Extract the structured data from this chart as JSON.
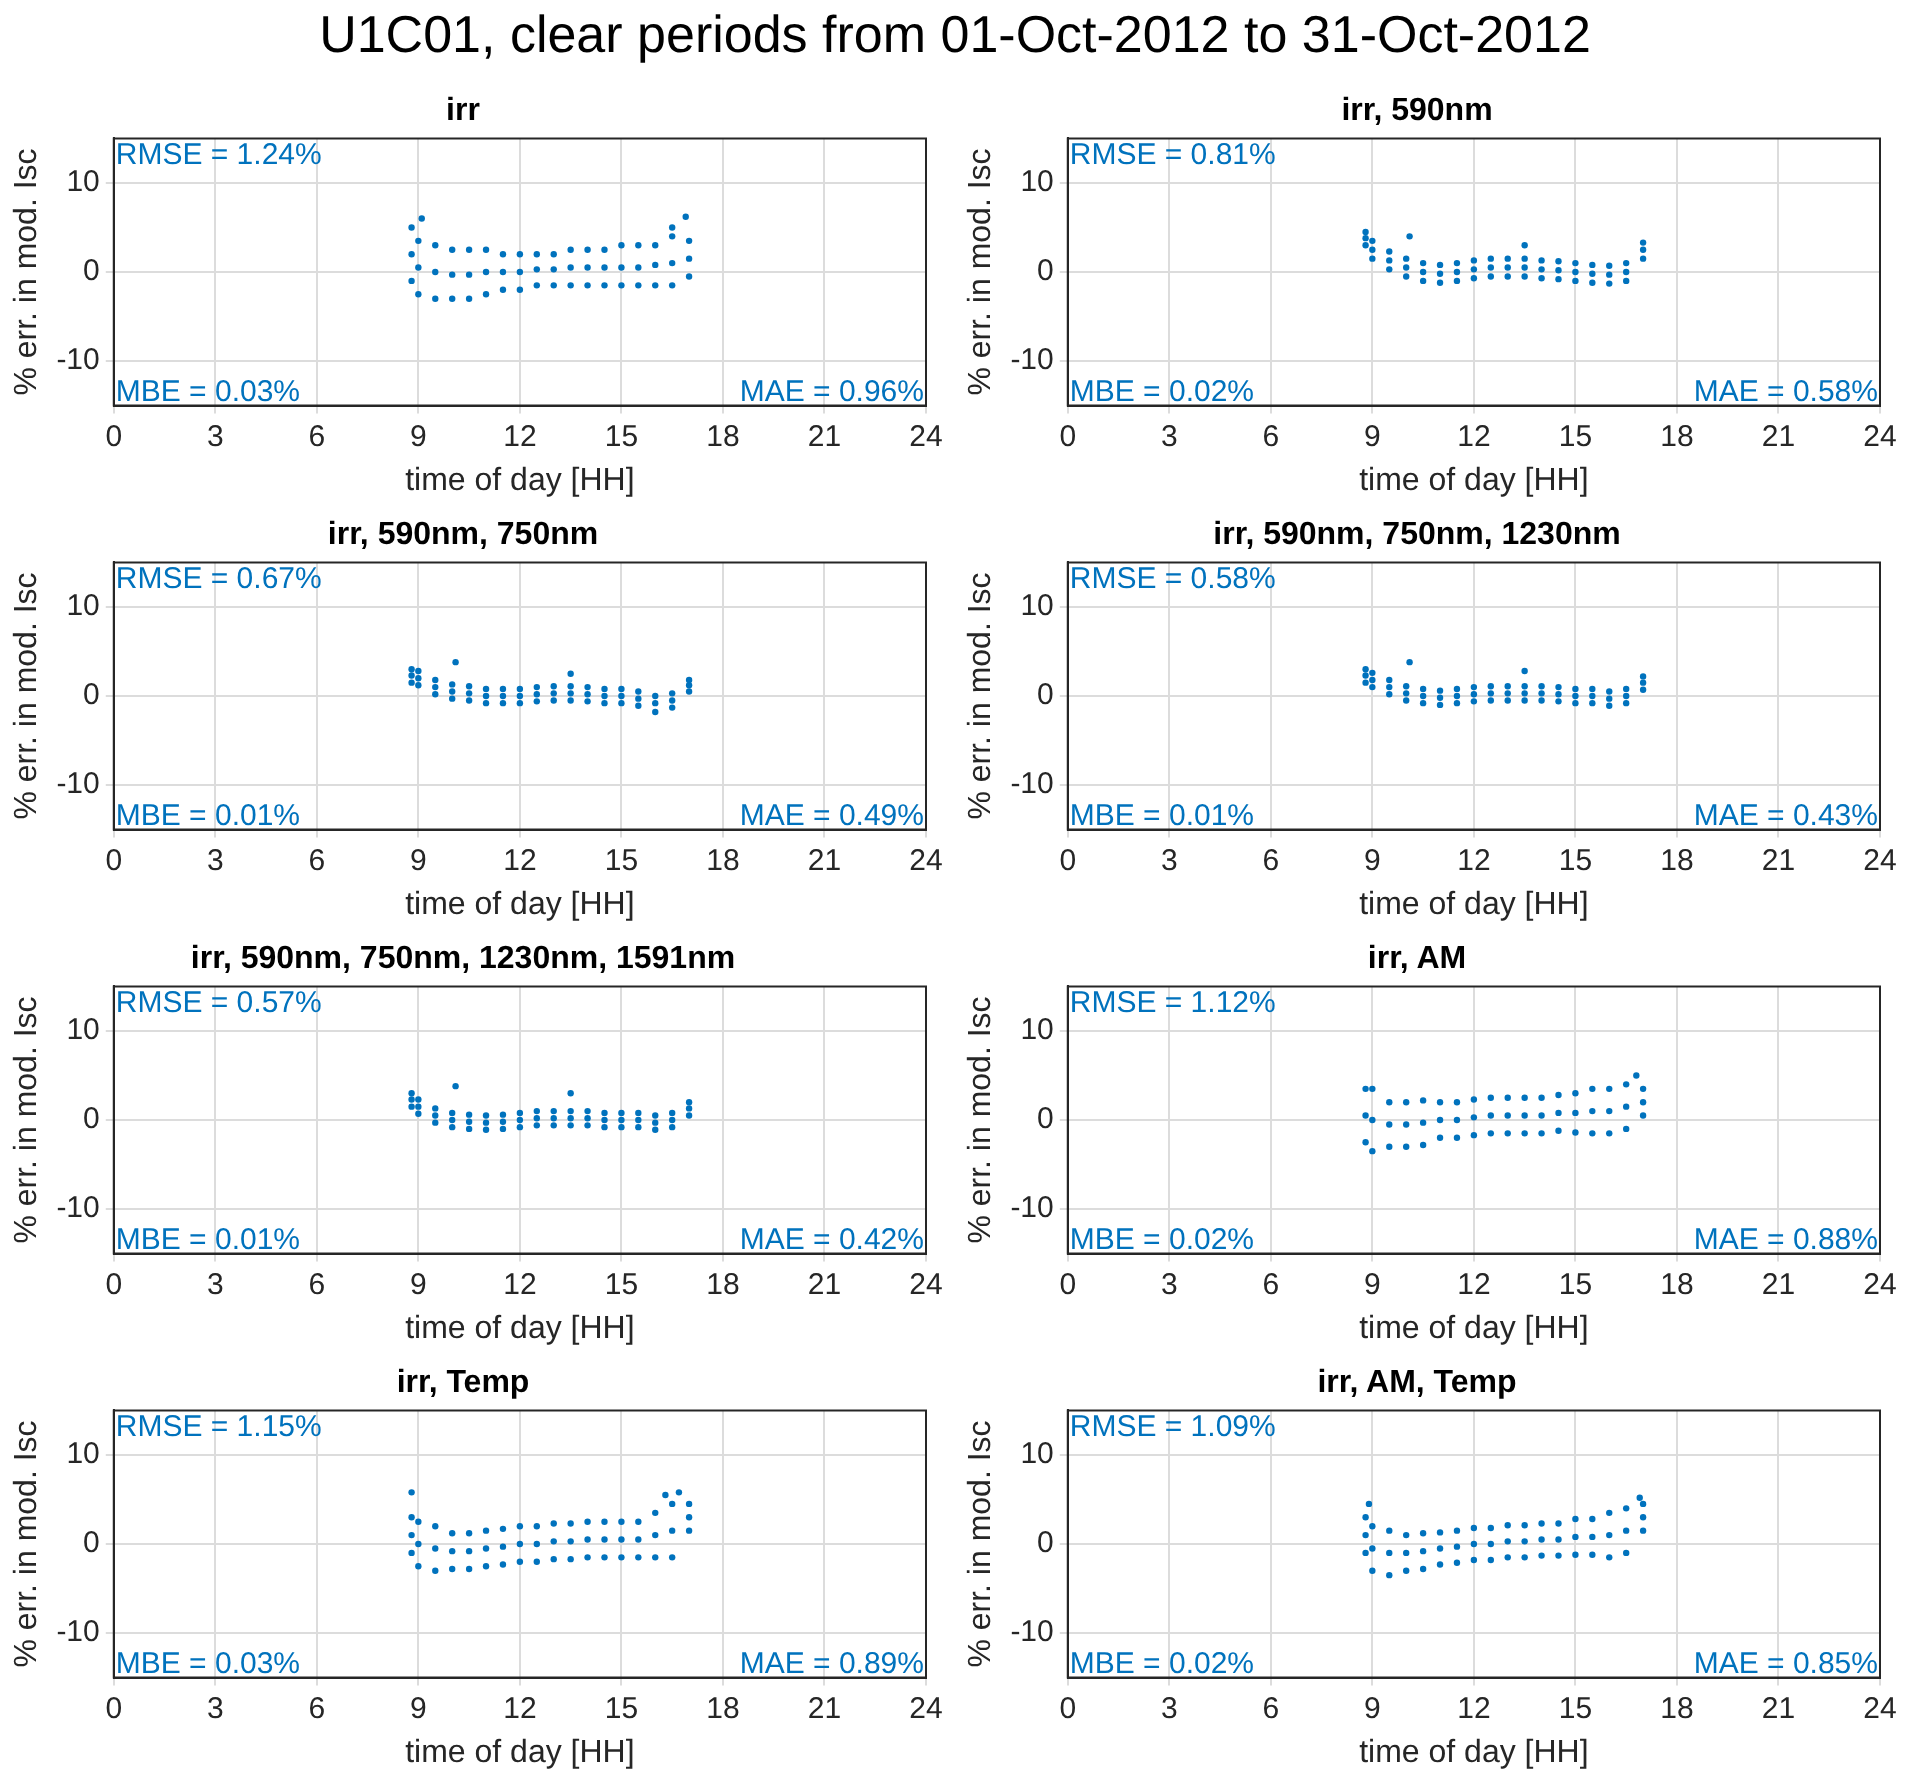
{
  "chart_data": [
    {
      "type": "other",
      "title": "U1C01, clear periods from 01-Oct-2012 to 31-Oct-2012"
    },
    {
      "type": "scatter",
      "title": "irr",
      "xlabel": "time of day [HH]",
      "ylabel": "% err. in mod. Isc",
      "xlim": [
        0,
        24
      ],
      "xticks": [
        0,
        3,
        6,
        9,
        12,
        15,
        18,
        21,
        24
      ],
      "ylim": [
        -15,
        15
      ],
      "yticks": [
        -10,
        0,
        10
      ],
      "grid": true,
      "marker": "circle",
      "annotations": [
        "RMSE = 1.24%",
        "MBE = 0.03%",
        "MAE = 0.96%"
      ],
      "x": [
        8.8,
        8.8,
        8.8,
        9,
        9,
        9,
        9.5,
        9.5,
        9.5,
        10,
        10,
        10,
        10.5,
        10.5,
        10.5,
        11,
        11,
        11,
        11.5,
        11.5,
        11.5,
        12,
        12,
        12,
        12.5,
        12.5,
        12.5,
        13,
        13,
        13,
        13.5,
        13.5,
        13.5,
        14,
        14,
        14,
        14.5,
        14.5,
        14.5,
        15,
        15,
        15,
        15.5,
        15.5,
        15.5,
        16,
        16,
        16,
        16.5,
        16.5,
        16.5,
        17,
        17,
        17,
        9.1,
        16.9,
        16.5
      ],
      "series": [
        {
          "color": "#0072bd",
          "values": [
            5,
            2,
            -1,
            3.5,
            0.5,
            -2.5,
            3,
            0,
            -3,
            2.5,
            -0.3,
            -3,
            2.5,
            -0.3,
            -3,
            2.5,
            0,
            -2.5,
            2,
            0,
            -2,
            2,
            0,
            -2,
            2,
            0.3,
            -1.5,
            2,
            0.3,
            -1.5,
            2.5,
            0.5,
            -1.5,
            2.5,
            0.5,
            -1.5,
            2.5,
            0.5,
            -1.5,
            3,
            0.5,
            -1.5,
            3,
            0.5,
            -1.5,
            3,
            0.8,
            -1.5,
            4,
            1,
            -1.5,
            3.5,
            1.5,
            -0.5,
            6,
            6.2,
            5
          ]
        }
      ]
    },
    {
      "type": "scatter",
      "title": "irr, 590nm",
      "xlabel": "time of day [HH]",
      "ylabel": "% err. in mod. Isc",
      "xlim": [
        0,
        24
      ],
      "xticks": [
        0,
        3,
        6,
        9,
        12,
        15,
        18,
        21,
        24
      ],
      "ylim": [
        -15,
        15
      ],
      "yticks": [
        -10,
        0,
        10
      ],
      "grid": true,
      "marker": "circle",
      "annotations": [
        "RMSE = 0.81%",
        "MBE = 0.02%",
        "MAE = 0.58%"
      ],
      "x": [
        8.8,
        8.8,
        8.8,
        9,
        9,
        9,
        9.5,
        9.5,
        9.5,
        10,
        10,
        10,
        10.5,
        10.5,
        10.5,
        11,
        11,
        11,
        11.5,
        11.5,
        11.5,
        12,
        12,
        12,
        12.5,
        12.5,
        12.5,
        13,
        13,
        13,
        13.5,
        13.5,
        13.5,
        14,
        14,
        14,
        14.5,
        14.5,
        14.5,
        15,
        15,
        15,
        15.5,
        15.5,
        15.5,
        16,
        16,
        16,
        16.5,
        16.5,
        16.5,
        17,
        17,
        17,
        10.1,
        13.5
      ],
      "series": [
        {
          "color": "#0072bd",
          "values": [
            4.5,
            3.8,
            3,
            3.5,
            2.5,
            1.5,
            2.3,
            1.3,
            0.3,
            1.5,
            0.5,
            -0.5,
            1,
            0,
            -1,
            0.8,
            -0.2,
            -1.2,
            1,
            0,
            -1,
            1.3,
            0.3,
            -0.7,
            1.5,
            0.5,
            -0.5,
            1.5,
            0.5,
            -0.5,
            1.5,
            0.5,
            -0.5,
            1.3,
            0.3,
            -0.7,
            1.2,
            0.2,
            -0.8,
            1,
            0,
            -1,
            0.8,
            -0.2,
            -1.2,
            0.7,
            -0.3,
            -1.3,
            1,
            0,
            -1,
            3.3,
            2.5,
            1.5,
            4,
            3
          ]
        }
      ]
    },
    {
      "type": "scatter",
      "title": "irr, 590nm, 750nm",
      "xlabel": "time of day [HH]",
      "ylabel": "% err. in mod. Isc",
      "xlim": [
        0,
        24
      ],
      "xticks": [
        0,
        3,
        6,
        9,
        12,
        15,
        18,
        21,
        24
      ],
      "ylim": [
        -15,
        15
      ],
      "yticks": [
        -10,
        0,
        10
      ],
      "grid": true,
      "marker": "circle",
      "annotations": [
        "RMSE = 0.67%",
        "MBE = 0.01%",
        "MAE = 0.49%"
      ],
      "x": [
        8.8,
        8.8,
        8.8,
        9,
        9,
        9,
        9.5,
        9.5,
        9.5,
        10,
        10,
        10,
        10.5,
        10.5,
        10.5,
        11,
        11,
        11,
        11.5,
        11.5,
        11.5,
        12,
        12,
        12,
        12.5,
        12.5,
        12.5,
        13,
        13,
        13,
        13.5,
        13.5,
        13.5,
        14,
        14,
        14,
        14.5,
        14.5,
        14.5,
        15,
        15,
        15,
        15.5,
        15.5,
        15.5,
        16,
        16,
        16,
        16.5,
        16.5,
        16.5,
        17,
        17,
        17,
        10.1,
        13.5
      ],
      "series": [
        {
          "color": "#0072bd",
          "values": [
            3,
            2.3,
            1.5,
            2.8,
            2,
            1.2,
            1.8,
            1,
            0.2,
            1.3,
            0.5,
            -0.3,
            1.1,
            0.3,
            -0.5,
            0.8,
            0,
            -0.8,
            0.8,
            0,
            -0.8,
            0.8,
            0,
            -0.8,
            1,
            0.2,
            -0.6,
            1.1,
            0.3,
            -0.5,
            1.1,
            0.3,
            -0.5,
            1,
            0.2,
            -0.6,
            0.8,
            0,
            -0.8,
            0.8,
            0,
            -0.8,
            0.5,
            -0.3,
            -1.1,
            0,
            -0.8,
            -1.8,
            0.3,
            -0.5,
            -1.3,
            1.8,
            1.2,
            0.5,
            3.8,
            2.5
          ]
        }
      ]
    },
    {
      "type": "scatter",
      "title": "irr, 590nm, 750nm, 1230nm",
      "xlabel": "time of day [HH]",
      "ylabel": "% err. in mod. Isc",
      "xlim": [
        0,
        24
      ],
      "xticks": [
        0,
        3,
        6,
        9,
        12,
        15,
        18,
        21,
        24
      ],
      "ylim": [
        -15,
        15
      ],
      "yticks": [
        -10,
        0,
        10
      ],
      "grid": true,
      "marker": "circle",
      "annotations": [
        "RMSE = 0.58%",
        "MBE = 0.01%",
        "MAE = 0.43%"
      ],
      "x": [
        8.8,
        8.8,
        8.8,
        9,
        9,
        9,
        9.5,
        9.5,
        9.5,
        10,
        10,
        10,
        10.5,
        10.5,
        10.5,
        11,
        11,
        11,
        11.5,
        11.5,
        11.5,
        12,
        12,
        12,
        12.5,
        12.5,
        12.5,
        13,
        13,
        13,
        13.5,
        13.5,
        13.5,
        14,
        14,
        14,
        14.5,
        14.5,
        14.5,
        15,
        15,
        15,
        15.5,
        15.5,
        15.5,
        16,
        16,
        16,
        16.5,
        16.5,
        16.5,
        17,
        17,
        17,
        10.1,
        13.5
      ],
      "series": [
        {
          "color": "#0072bd",
          "values": [
            3,
            2.3,
            1.5,
            2.6,
            1.8,
            1,
            1.8,
            1,
            0.2,
            1.1,
            0.3,
            -0.5,
            0.8,
            0,
            -0.8,
            0.6,
            -0.2,
            -1,
            0.8,
            0,
            -0.8,
            1,
            0.2,
            -0.6,
            1.1,
            0.3,
            -0.5,
            1.1,
            0.3,
            -0.5,
            1.1,
            0.3,
            -0.5,
            1.1,
            0.3,
            -0.5,
            1,
            0.2,
            -0.6,
            0.8,
            0,
            -0.8,
            0.8,
            0,
            -0.8,
            0.5,
            -0.3,
            -1.1,
            0.8,
            0,
            -0.8,
            2.2,
            1.5,
            0.7,
            3.8,
            2.8
          ]
        }
      ]
    },
    {
      "type": "scatter",
      "title": "irr, 590nm, 750nm, 1230nm, 1591nm",
      "xlabel": "time of day [HH]",
      "ylabel": "% err. in mod. Isc",
      "xlim": [
        0,
        24
      ],
      "xticks": [
        0,
        3,
        6,
        9,
        12,
        15,
        18,
        21,
        24
      ],
      "ylim": [
        -15,
        15
      ],
      "yticks": [
        -10,
        0,
        10
      ],
      "grid": true,
      "marker": "circle",
      "annotations": [
        "RMSE = 0.57%",
        "MBE = 0.01%",
        "MAE = 0.42%"
      ],
      "x": [
        8.8,
        8.8,
        8.8,
        9,
        9,
        9,
        9.5,
        9.5,
        9.5,
        10,
        10,
        10,
        10.5,
        10.5,
        10.5,
        11,
        11,
        11,
        11.5,
        11.5,
        11.5,
        12,
        12,
        12,
        12.5,
        12.5,
        12.5,
        13,
        13,
        13,
        13.5,
        13.5,
        13.5,
        14,
        14,
        14,
        14.5,
        14.5,
        14.5,
        15,
        15,
        15,
        15.5,
        15.5,
        15.5,
        16,
        16,
        16,
        16.5,
        16.5,
        16.5,
        17,
        17,
        17,
        10.1,
        13.5
      ],
      "series": [
        {
          "color": "#0072bd",
          "values": [
            3,
            2.3,
            1.5,
            2.3,
            1.5,
            0.7,
            1.3,
            0.5,
            -0.3,
            0.8,
            0,
            -0.8,
            0.6,
            -0.2,
            -1,
            0.5,
            -0.3,
            -1.1,
            0.6,
            -0.2,
            -1,
            0.8,
            0,
            -0.8,
            1,
            0.2,
            -0.6,
            1,
            0.2,
            -0.6,
            1,
            0.2,
            -0.6,
            1,
            0.2,
            -0.6,
            0.8,
            0,
            -0.8,
            0.8,
            0,
            -0.8,
            0.8,
            0,
            -0.8,
            0.5,
            -0.3,
            -1.1,
            0.8,
            0,
            -0.8,
            2,
            1.3,
            0.5,
            3.8,
            3
          ]
        }
      ]
    },
    {
      "type": "scatter",
      "title": "irr, AM",
      "xlabel": "time of day [HH]",
      "ylabel": "% err. in mod. Isc",
      "xlim": [
        0,
        24
      ],
      "xticks": [
        0,
        3,
        6,
        9,
        12,
        15,
        18,
        21,
        24
      ],
      "ylim": [
        -15,
        15
      ],
      "yticks": [
        -10,
        0,
        10
      ],
      "grid": true,
      "marker": "circle",
      "annotations": [
        "RMSE = 1.12%",
        "MBE = 0.02%",
        "MAE = 0.88%"
      ],
      "x": [
        8.8,
        8.8,
        8.8,
        9,
        9,
        9,
        9.5,
        9.5,
        9.5,
        10,
        10,
        10,
        10.5,
        10.5,
        10.5,
        11,
        11,
        11,
        11.5,
        11.5,
        11.5,
        12,
        12,
        12,
        12.5,
        12.5,
        12.5,
        13,
        13,
        13,
        13.5,
        13.5,
        13.5,
        14,
        14,
        14,
        14.5,
        14.5,
        14.5,
        15,
        15,
        15,
        15.5,
        15.5,
        15.5,
        16,
        16,
        16,
        16.5,
        16.5,
        16.5,
        17,
        17,
        17,
        16.8
      ],
      "series": [
        {
          "color": "#0072bd",
          "values": [
            3.5,
            0.5,
            -2.5,
            3.5,
            0,
            -3.5,
            2,
            -0.5,
            -3,
            2,
            -0.5,
            -3,
            2.2,
            -0.3,
            -2.8,
            2,
            0,
            -2,
            2,
            0,
            -2,
            2.3,
            0.3,
            -1.7,
            2.5,
            0.5,
            -1.5,
            2.5,
            0.5,
            -1.5,
            2.5,
            0.5,
            -1.5,
            2.5,
            0.5,
            -1.5,
            2.8,
            0.8,
            -1.2,
            3,
            0.8,
            -1.4,
            3.5,
            1,
            -1.5,
            3.5,
            1,
            -1.5,
            4,
            1.5,
            -1,
            3.5,
            2,
            0.5,
            5
          ]
        }
      ]
    },
    {
      "type": "scatter",
      "title": "irr, Temp",
      "xlabel": "time of day [HH]",
      "ylabel": "% err. in mod. Isc",
      "xlim": [
        0,
        24
      ],
      "xticks": [
        0,
        3,
        6,
        9,
        12,
        15,
        18,
        21,
        24
      ],
      "ylim": [
        -15,
        15
      ],
      "yticks": [
        -10,
        0,
        10
      ],
      "grid": true,
      "marker": "circle",
      "annotations": [
        "RMSE = 1.15%",
        "MBE = 0.03%",
        "MAE = 0.89%"
      ],
      "x": [
        8.8,
        8.8,
        8.8,
        9,
        9,
        9,
        9.5,
        9.5,
        9.5,
        10,
        10,
        10,
        10.5,
        10.5,
        10.5,
        11,
        11,
        11,
        11.5,
        11.5,
        11.5,
        12,
        12,
        12,
        12.5,
        12.5,
        12.5,
        13,
        13,
        13,
        13.5,
        13.5,
        13.5,
        14,
        14,
        14,
        14.5,
        14.5,
        14.5,
        15,
        15,
        15,
        15.5,
        15.5,
        15.5,
        16,
        16,
        16,
        16.5,
        16.5,
        16.5,
        17,
        17,
        17,
        8.8,
        16.7,
        16.3
      ],
      "series": [
        {
          "color": "#0072bd",
          "values": [
            3,
            1,
            -1,
            2.5,
            0,
            -2.5,
            2,
            -0.5,
            -3,
            1.2,
            -0.8,
            -2.8,
            1.2,
            -0.8,
            -2.8,
            1.5,
            -0.5,
            -2.5,
            1.7,
            -0.3,
            -2.3,
            2,
            0,
            -2,
            2,
            0,
            -2,
            2.3,
            0.3,
            -1.7,
            2.3,
            0.3,
            -1.7,
            2.5,
            0.5,
            -1.5,
            2.5,
            0.5,
            -1.5,
            2.5,
            0.5,
            -1.5,
            2.5,
            0.5,
            -1.5,
            3.5,
            1,
            -1.5,
            4.5,
            1.5,
            -1.5,
            4.5,
            3,
            1.5,
            5.8,
            5.8,
            5.5
          ]
        }
      ]
    },
    {
      "type": "scatter",
      "title": "irr, AM, Temp",
      "xlabel": "time of day [HH]",
      "ylabel": "% err. in mod. Isc",
      "xlim": [
        0,
        24
      ],
      "xticks": [
        0,
        3,
        6,
        9,
        12,
        15,
        18,
        21,
        24
      ],
      "ylim": [
        -15,
        15
      ],
      "yticks": [
        -10,
        0,
        10
      ],
      "grid": true,
      "marker": "circle",
      "annotations": [
        "RMSE = 1.09%",
        "MBE = 0.02%",
        "MAE = 0.85%"
      ],
      "x": [
        8.8,
        8.8,
        8.8,
        9,
        9,
        9,
        9.5,
        9.5,
        9.5,
        10,
        10,
        10,
        10.5,
        10.5,
        10.5,
        11,
        11,
        11,
        11.5,
        11.5,
        11.5,
        12,
        12,
        12,
        12.5,
        12.5,
        12.5,
        13,
        13,
        13,
        13.5,
        13.5,
        13.5,
        14,
        14,
        14,
        14.5,
        14.5,
        14.5,
        15,
        15,
        15,
        15.5,
        15.5,
        15.5,
        16,
        16,
        16,
        16.5,
        16.5,
        16.5,
        17,
        17,
        17,
        8.9,
        16.9
      ],
      "series": [
        {
          "color": "#0072bd",
          "values": [
            3,
            1,
            -1,
            2,
            -0.5,
            -3,
            1.5,
            -1,
            -3.5,
            1,
            -1,
            -3,
            1.2,
            -0.8,
            -2.8,
            1.3,
            -0.5,
            -2.3,
            1.5,
            -0.3,
            -2.1,
            1.8,
            0,
            -1.8,
            1.8,
            0,
            -1.8,
            2.1,
            0.3,
            -1.5,
            2.1,
            0.3,
            -1.5,
            2.3,
            0.5,
            -1.3,
            2.3,
            0.5,
            -1.3,
            2.8,
            0.8,
            -1.2,
            2.8,
            0.8,
            -1.2,
            3.5,
            1,
            -1.5,
            4,
            1.5,
            -1,
            4.5,
            3,
            1.5,
            4.5,
            5.2
          ]
        }
      ]
    }
  ]
}
